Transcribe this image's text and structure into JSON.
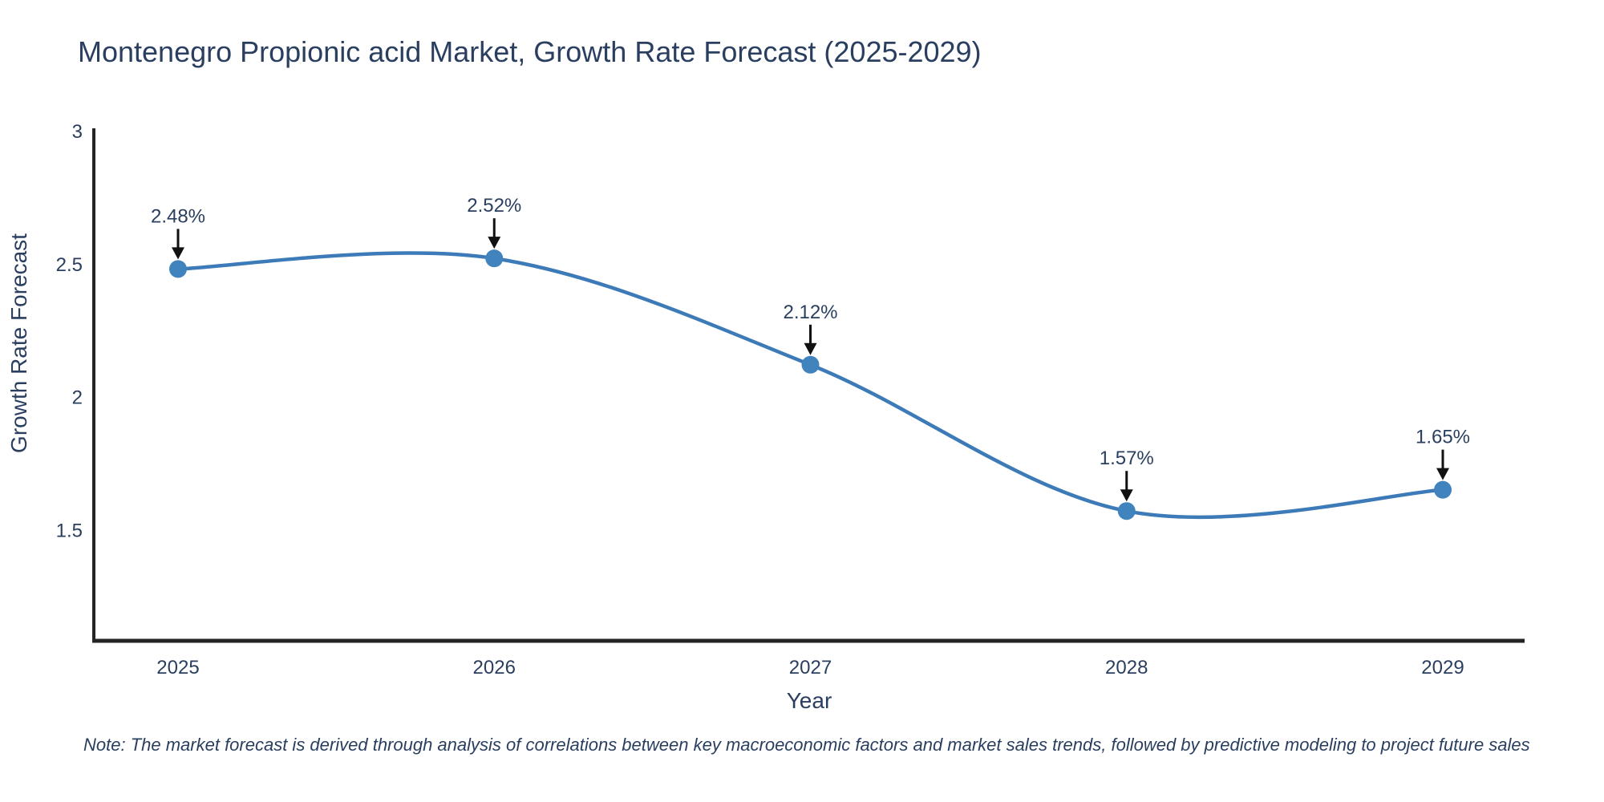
{
  "title": "Montenegro Propionic acid Market, Growth Rate Forecast (2025-2029)",
  "note": "Note: The market forecast is derived through analysis of correlations between key macroeconomic factors and market sales trends, followed by predictive modeling to project future sales",
  "chart_data": {
    "type": "line",
    "title": "Montenegro Propionic acid Market, Growth Rate Forecast (2025-2029)",
    "xlabel": "Year",
    "ylabel": "Growth Rate Forecast",
    "x": [
      2025,
      2026,
      2027,
      2028,
      2029
    ],
    "x_tick_labels": [
      "2025",
      "2026",
      "2027",
      "2028",
      "2029"
    ],
    "series": [
      {
        "name": "Growth Rate Forecast",
        "values": [
          2.48,
          2.52,
          2.12,
          1.57,
          1.65
        ]
      }
    ],
    "point_labels": [
      "2.48%",
      "2.52%",
      "2.12%",
      "1.57%",
      "1.65%"
    ],
    "y_ticks": [
      3,
      2.5,
      2,
      1.5
    ],
    "ylim": [
      1.07,
      3.01
    ],
    "line_shape": "spline",
    "grid": false,
    "legend": "none",
    "colors": {
      "line": "#3d7ab8",
      "marker": "#4183bd",
      "axis": "#242424",
      "text": "#2a3f5f",
      "arrow": "#111111",
      "background": "#ffffff"
    }
  }
}
